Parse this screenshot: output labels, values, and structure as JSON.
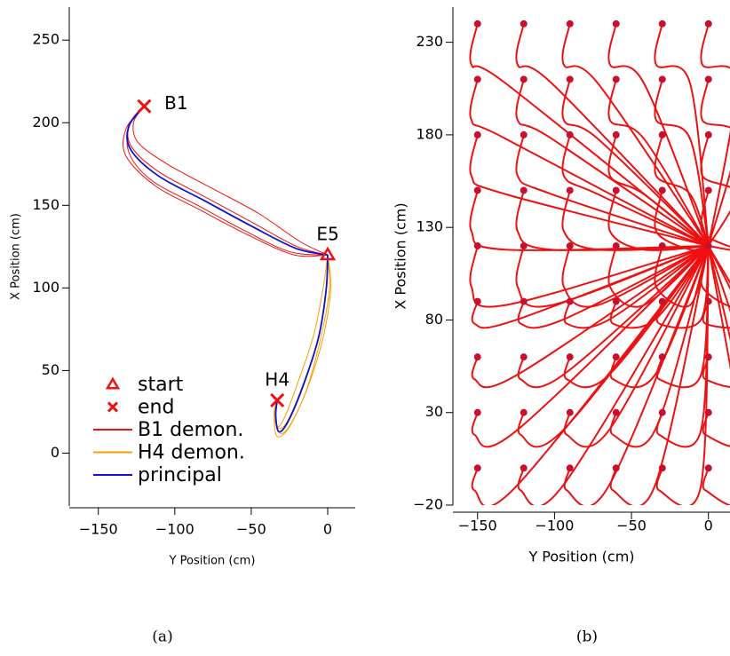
{
  "chart_data": [
    {
      "type": "line",
      "caption": "(a)",
      "xlabel": "Y Position (cm)",
      "ylabel": "X Position (cm)",
      "xlim": [
        -169,
        18
      ],
      "ylim": [
        -32,
        270
      ],
      "xticks": [
        {
          "value": -150,
          "label": "−150"
        },
        {
          "value": -100,
          "label": "−100"
        },
        {
          "value": -50,
          "label": "−50"
        },
        0
      ],
      "yticks": [
        0,
        50,
        100,
        150,
        200,
        250
      ],
      "legend": "lower left",
      "series": [
        {
          "name": "B1 demon.",
          "color": "#f01010",
          "lines": [
            {
              "x": [
                0,
                -20,
                -50,
                -80,
                -110,
                -128,
                -130,
                -120
              ],
              "y": [
                120,
                125,
                140,
                155,
                170,
                185,
                198,
                210
              ]
            },
            {
              "x": [
                0,
                -25,
                -55,
                -85,
                -115,
                -130,
                -129,
                -118
              ],
              "y": [
                120,
                122,
                135,
                150,
                165,
                182,
                200,
                212
              ]
            },
            {
              "x": [
                0,
                -18,
                -45,
                -75,
                -105,
                -124,
                -127,
                -121
              ],
              "y": [
                120,
                128,
                145,
                160,
                175,
                188,
                200,
                209
              ]
            },
            {
              "x": [
                0,
                -22,
                -52,
                -83,
                -113,
                -132,
                -132,
                -122
              ],
              "y": [
                120,
                120,
                132,
                147,
                162,
                180,
                196,
                208
              ]
            }
          ]
        },
        {
          "name": "H4 demon.",
          "color": "#f5a000",
          "lines": [
            {
              "x": [
                0,
                -1,
                -6,
                -16,
                -26,
                -32,
                -34,
                -33
              ],
              "y": [
                120,
                100,
                70,
                42,
                20,
                15,
                24,
                32
              ]
            },
            {
              "x": [
                0,
                2,
                -3,
                -13,
                -24,
                -31,
                -34,
                -33
              ],
              "y": [
                120,
                100,
                70,
                40,
                18,
                12,
                22,
                32
              ]
            },
            {
              "x": [
                0,
                -3,
                -9,
                -19,
                -28,
                -33,
                -35,
                -33
              ],
              "y": [
                120,
                100,
                72,
                44,
                22,
                16,
                25,
                32
              ]
            },
            {
              "x": [
                0,
                1,
                -5,
                -14,
                -25,
                -33,
                -35,
                -33
              ],
              "y": [
                120,
                98,
                68,
                38,
                16,
                10,
                22,
                32
              ]
            }
          ]
        },
        {
          "name": "principal",
          "color": "#1010d0",
          "lines": [
            {
              "x": [
                0,
                -21,
                -51,
                -81,
                -111,
                -129,
                -130,
                -120
              ],
              "y": [
                120,
                124,
                138,
                153,
                168,
                184,
                198,
                210
              ]
            },
            {
              "x": [
                0,
                -1,
                -6,
                -16,
                -26,
                -32,
                -34,
                -33
              ],
              "y": [
                120,
                99,
                70,
                41,
                19,
                13,
                23,
                32
              ]
            }
          ]
        }
      ],
      "markers": {
        "start": {
          "name": "start",
          "color": "#f01010",
          "points": [
            {
              "label": "E5",
              "x": 0,
              "y": 120
            }
          ]
        },
        "end": {
          "name": "end",
          "color": "#f01010",
          "points": [
            {
              "label": "B1",
              "x": -120,
              "y": 210
            },
            {
              "label": "H4",
              "x": -33,
              "y": 32
            }
          ]
        }
      }
    },
    {
      "type": "line",
      "caption": "(b)",
      "xlabel": "Y Position (cm)",
      "ylabel": "X Position (cm)",
      "xlim": [
        -166,
        14
      ],
      "ylim": [
        -20,
        249
      ],
      "xticks": [
        {
          "value": -150,
          "label": "−150"
        },
        {
          "value": -100,
          "label": "−100"
        },
        {
          "value": -50,
          "label": "−50"
        },
        0
      ],
      "yticks": [
        {
          "value": -20,
          "label": "−20"
        },
        30,
        80,
        130,
        180,
        230
      ],
      "color": "#ee1111",
      "dot_color": "#c8102e",
      "trajectories": [
        {
          "x": [
            -150,
            -152,
            -125,
            0
          ],
          "y": [
            0,
            -12,
            -10,
            120
          ]
        },
        {
          "x": [
            -120,
            -122,
            -95,
            0
          ],
          "y": [
            0,
            -12,
            -10,
            120
          ]
        },
        {
          "x": [
            -90,
            -92,
            -65,
            0
          ],
          "y": [
            0,
            -12,
            -10,
            120
          ]
        },
        {
          "x": [
            -60,
            -62,
            -35,
            0
          ],
          "y": [
            0,
            -12,
            -10,
            120
          ]
        },
        {
          "x": [
            -30,
            -32,
            -5,
            0
          ],
          "y": [
            0,
            -12,
            -10,
            120
          ]
        },
        {
          "x": [
            0,
            -2,
            25,
            0
          ],
          "y": [
            0,
            -12,
            -10,
            120
          ]
        },
        {
          "x": [
            -150,
            -152,
            -125,
            0
          ],
          "y": [
            30,
            18,
            20,
            120
          ]
        },
        {
          "x": [
            -120,
            -122,
            -95,
            0
          ],
          "y": [
            30,
            18,
            20,
            120
          ]
        },
        {
          "x": [
            -90,
            -92,
            -65,
            0
          ],
          "y": [
            30,
            18,
            20,
            120
          ]
        },
        {
          "x": [
            -60,
            -62,
            -35,
            0
          ],
          "y": [
            30,
            18,
            20,
            120
          ]
        },
        {
          "x": [
            -30,
            -32,
            -5,
            0
          ],
          "y": [
            30,
            18,
            20,
            120
          ]
        },
        {
          "x": [
            0,
            -2,
            25,
            0
          ],
          "y": [
            30,
            18,
            20,
            120
          ]
        },
        {
          "x": [
            -150,
            -152,
            -125,
            0
          ],
          "y": [
            60,
            48,
            50,
            120
          ]
        },
        {
          "x": [
            -120,
            -122,
            -95,
            0
          ],
          "y": [
            60,
            48,
            50,
            120
          ]
        },
        {
          "x": [
            -90,
            -92,
            -65,
            0
          ],
          "y": [
            60,
            48,
            50,
            120
          ]
        },
        {
          "x": [
            -60,
            -62,
            -35,
            0
          ],
          "y": [
            60,
            48,
            50,
            120
          ]
        },
        {
          "x": [
            -30,
            -32,
            -5,
            0
          ],
          "y": [
            60,
            48,
            50,
            120
          ]
        },
        {
          "x": [
            0,
            -2,
            25,
            0
          ],
          "y": [
            60,
            48,
            50,
            120
          ]
        },
        {
          "x": [
            -150,
            -152,
            -125,
            0
          ],
          "y": [
            90,
            78,
            80,
            120
          ]
        },
        {
          "x": [
            -120,
            -122,
            -95,
            0
          ],
          "y": [
            90,
            78,
            80,
            120
          ]
        },
        {
          "x": [
            -90,
            -92,
            -65,
            0
          ],
          "y": [
            90,
            78,
            80,
            120
          ]
        },
        {
          "x": [
            -60,
            -62,
            -35,
            0
          ],
          "y": [
            90,
            78,
            80,
            120
          ]
        },
        {
          "x": [
            -30,
            -32,
            -5,
            0
          ],
          "y": [
            90,
            78,
            80,
            120
          ]
        },
        {
          "x": [
            0,
            -2,
            25,
            0
          ],
          "y": [
            90,
            78,
            80,
            120
          ]
        },
        {
          "x": [
            -150,
            -154,
            -132,
            0
          ],
          "y": [
            120,
            98,
            88,
            120
          ]
        },
        {
          "x": [
            -120,
            -124,
            -102,
            0
          ],
          "y": [
            120,
            98,
            88,
            120
          ]
        },
        {
          "x": [
            -90,
            -94,
            -72,
            0
          ],
          "y": [
            120,
            98,
            88,
            120
          ]
        },
        {
          "x": [
            -60,
            -64,
            -42,
            0
          ],
          "y": [
            120,
            98,
            88,
            120
          ]
        },
        {
          "x": [
            -30,
            -34,
            -12,
            0
          ],
          "y": [
            120,
            98,
            88,
            120
          ]
        },
        {
          "x": [
            0,
            -4,
            18,
            0
          ],
          "y": [
            120,
            98,
            88,
            120
          ]
        },
        {
          "x": [
            -150,
            -154,
            -132,
            0
          ],
          "y": [
            150,
            128,
            118,
            120
          ]
        },
        {
          "x": [
            -120,
            -124,
            -102,
            0
          ],
          "y": [
            150,
            128,
            118,
            120
          ]
        },
        {
          "x": [
            -90,
            -94,
            -72,
            0
          ],
          "y": [
            150,
            128,
            118,
            120
          ]
        },
        {
          "x": [
            -60,
            -64,
            -42,
            0
          ],
          "y": [
            150,
            128,
            118,
            120
          ]
        },
        {
          "x": [
            -30,
            -34,
            -12,
            0
          ],
          "y": [
            150,
            128,
            118,
            120
          ]
        },
        {
          "x": [
            0,
            -4,
            18,
            0
          ],
          "y": [
            150,
            128,
            118,
            120
          ]
        },
        {
          "x": [
            -150,
            -154,
            -132,
            0
          ],
          "y": [
            180,
            158,
            148,
            120
          ]
        },
        {
          "x": [
            -120,
            -124,
            -102,
            0
          ],
          "y": [
            180,
            158,
            148,
            120
          ]
        },
        {
          "x": [
            -90,
            -94,
            -72,
            0
          ],
          "y": [
            180,
            158,
            148,
            120
          ]
        },
        {
          "x": [
            -60,
            -64,
            -42,
            0
          ],
          "y": [
            180,
            158,
            148,
            120
          ]
        },
        {
          "x": [
            -30,
            -34,
            -12,
            0
          ],
          "y": [
            180,
            158,
            148,
            120
          ]
        },
        {
          "x": [
            0,
            -4,
            18,
            0
          ],
          "y": [
            180,
            158,
            148,
            120
          ]
        },
        {
          "x": [
            -150,
            -154,
            -132,
            0
          ],
          "y": [
            210,
            188,
            178,
            120
          ]
        },
        {
          "x": [
            -120,
            -124,
            -102,
            0
          ],
          "y": [
            210,
            188,
            178,
            120
          ]
        },
        {
          "x": [
            -90,
            -94,
            -72,
            0
          ],
          "y": [
            210,
            188,
            178,
            120
          ]
        },
        {
          "x": [
            -60,
            -64,
            -42,
            0
          ],
          "y": [
            210,
            188,
            178,
            120
          ]
        },
        {
          "x": [
            -30,
            -34,
            -12,
            0
          ],
          "y": [
            210,
            188,
            178,
            120
          ]
        },
        {
          "x": [
            0,
            -4,
            18,
            0
          ],
          "y": [
            210,
            188,
            178,
            120
          ]
        },
        {
          "x": [
            -150,
            -154,
            -132,
            0
          ],
          "y": [
            240,
            218,
            208,
            120
          ]
        },
        {
          "x": [
            -120,
            -124,
            -102,
            0
          ],
          "y": [
            240,
            218,
            208,
            120
          ]
        },
        {
          "x": [
            -90,
            -94,
            -72,
            0
          ],
          "y": [
            240,
            218,
            208,
            120
          ]
        },
        {
          "x": [
            -60,
            -64,
            -42,
            0
          ],
          "y": [
            240,
            218,
            208,
            120
          ]
        },
        {
          "x": [
            -30,
            -34,
            -12,
            0
          ],
          "y": [
            240,
            218,
            208,
            120
          ]
        },
        {
          "x": [
            0,
            -4,
            18,
            0
          ],
          "y": [
            240,
            218,
            208,
            120
          ]
        }
      ]
    }
  ]
}
